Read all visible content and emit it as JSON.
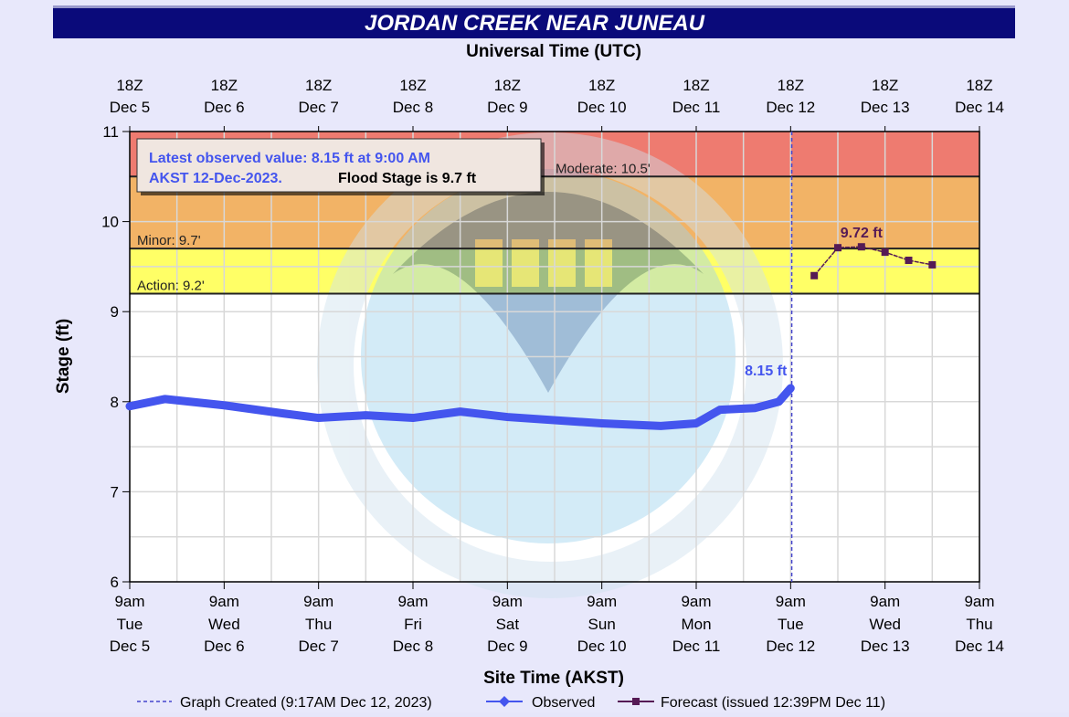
{
  "chart_data": {
    "type": "line",
    "title": "JORDAN CREEK NEAR JUNEAU",
    "top_axis_label": "Universal Time (UTC)",
    "xlabel": "Site Time (AKST)",
    "ylabel": "Stage (ft)",
    "ylim": [
      6,
      11
    ],
    "yticks": [
      6,
      7,
      8,
      9,
      10,
      11
    ],
    "xlim": [
      "2023-12-05T09:00",
      "2023-12-14T09:00"
    ],
    "bottom_ticks": [
      {
        "t": "9am",
        "d": "Tue",
        "m": "Dec 5"
      },
      {
        "t": "9am",
        "d": "Wed",
        "m": "Dec 6"
      },
      {
        "t": "9am",
        "d": "Thu",
        "m": "Dec 7"
      },
      {
        "t": "9am",
        "d": "Fri",
        "m": "Dec 8"
      },
      {
        "t": "9am",
        "d": "Sat",
        "m": "Dec 9"
      },
      {
        "t": "9am",
        "d": "Sun",
        "m": "Dec 10"
      },
      {
        "t": "9am",
        "d": "Mon",
        "m": "Dec 11"
      },
      {
        "t": "9am",
        "d": "Tue",
        "m": "Dec 12"
      },
      {
        "t": "9am",
        "d": "Wed",
        "m": "Dec 13"
      },
      {
        "t": "9am",
        "d": "Thu",
        "m": "Dec 14"
      }
    ],
    "top_ticks": [
      {
        "t": "18Z",
        "m": "Dec 5"
      },
      {
        "t": "18Z",
        "m": "Dec 6"
      },
      {
        "t": "18Z",
        "m": "Dec 7"
      },
      {
        "t": "18Z",
        "m": "Dec 8"
      },
      {
        "t": "18Z",
        "m": "Dec 9"
      },
      {
        "t": "18Z",
        "m": "Dec 10"
      },
      {
        "t": "18Z",
        "m": "Dec 11"
      },
      {
        "t": "18Z",
        "m": "Dec 12"
      },
      {
        "t": "18Z",
        "m": "Dec 13"
      },
      {
        "t": "18Z",
        "m": "Dec 14"
      }
    ],
    "bands": [
      {
        "label": "Action: 9.2'",
        "from": 9.2,
        "to": 9.7,
        "color": "#ffff66"
      },
      {
        "label": "Minor: 9.7'",
        "from": 9.7,
        "to": 10.5,
        "color": "#f2b366"
      },
      {
        "label": "Moderate: 10.5'",
        "from": 10.5,
        "to": 11,
        "color": "#ee7b70"
      }
    ],
    "info_box": {
      "line1": "Latest observed value: 8.15 ft at 9:00 AM",
      "line2a": "AKST 12-Dec-2023.",
      "line2b": "Flood Stage is 9.7 ft"
    },
    "series": [
      {
        "name": "Observed",
        "color": "#4455ee",
        "label": "8.15 ft",
        "points": [
          [
            "2023-12-05T09:00",
            7.95
          ],
          [
            "2023-12-05T18:00",
            8.03
          ],
          [
            "2023-12-06T09:00",
            7.96
          ],
          [
            "2023-12-07T00:00",
            7.87
          ],
          [
            "2023-12-07T09:00",
            7.82
          ],
          [
            "2023-12-07T21:00",
            7.85
          ],
          [
            "2023-12-08T09:00",
            7.82
          ],
          [
            "2023-12-08T21:00",
            7.89
          ],
          [
            "2023-12-09T09:00",
            7.83
          ],
          [
            "2023-12-10T09:00",
            7.76
          ],
          [
            "2023-12-11T00:00",
            7.73
          ],
          [
            "2023-12-11T09:00",
            7.76
          ],
          [
            "2023-12-11T15:00",
            7.91
          ],
          [
            "2023-12-12T00:00",
            7.93
          ],
          [
            "2023-12-12T06:00",
            8.0
          ],
          [
            "2023-12-12T09:00",
            8.15
          ]
        ]
      },
      {
        "name": "Forecast (issued 12:39PM Dec 11)",
        "color": "#551a55",
        "label": "9.72 ft",
        "points": [
          [
            "2023-12-12T15:00",
            9.4
          ],
          [
            "2023-12-12T21:00",
            9.71
          ],
          [
            "2023-12-13T03:00",
            9.72
          ],
          [
            "2023-12-13T09:00",
            9.66
          ],
          [
            "2023-12-13T15:00",
            9.57
          ],
          [
            "2023-12-13T21:00",
            9.52
          ]
        ]
      }
    ],
    "graph_created": {
      "label": "Graph Created (9:17AM Dec 12, 2023)",
      "time": "2023-12-12T09:17"
    },
    "legend": {
      "placement": "bottom",
      "created": "Graph Created (9:17AM Dec 12, 2023)",
      "observed": "Observed",
      "forecast": "Forecast (issued 12:39PM Dec 11)"
    },
    "watermark": "NOAA - NATIONAL OCEANIC AND ATMOSPHERIC ADMINISTRATION - U.S. DEPARTMENT OF COMMERCE"
  }
}
